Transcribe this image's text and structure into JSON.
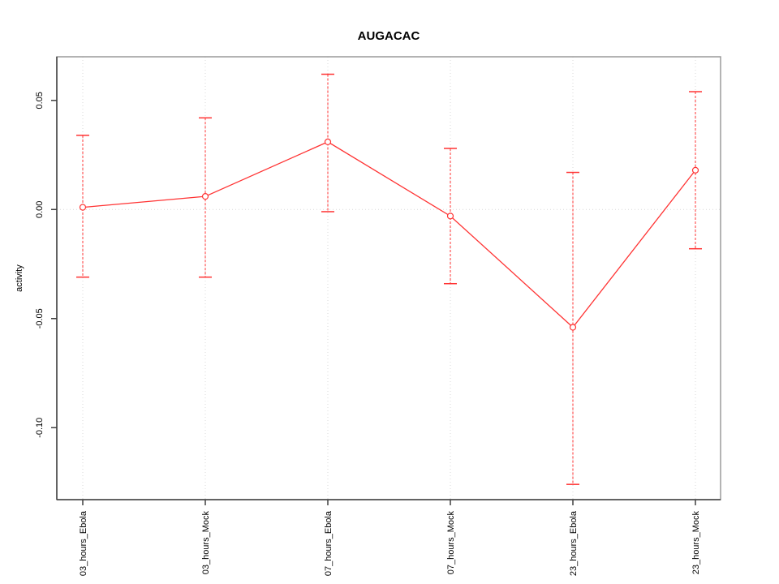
{
  "chart_data": {
    "type": "line",
    "title": "AUGACAC",
    "ylabel": "activity",
    "xlabel": "",
    "legend": "none",
    "grid": "dotted vertical line per category plus dotted horizontal line at zero",
    "categories": [
      "03_hours_Ebola",
      "03_hours_Mock",
      "07_hours_Ebola",
      "07_hours_Mock",
      "23_hours_Ebola",
      "23_hours_Mock"
    ],
    "series": [
      {
        "name": "activity",
        "means": [
          0.001,
          0.006,
          0.031,
          -0.003,
          -0.054,
          0.018
        ],
        "upper": [
          0.034,
          0.042,
          0.062,
          0.028,
          0.017,
          0.054
        ],
        "lower": [
          -0.031,
          -0.031,
          -0.001,
          -0.034,
          -0.126,
          -0.018
        ]
      }
    ],
    "yticks": [
      {
        "value": 0.05,
        "label": "0.05"
      },
      {
        "value": 0.0,
        "label": "0.00"
      },
      {
        "value": -0.05,
        "label": "-0.05"
      },
      {
        "value": -0.1,
        "label": "-0.10"
      }
    ],
    "ylim": [
      -0.133,
      0.07
    ],
    "colors": {
      "series": "#ff3333",
      "grid": "#d9d9d9",
      "box": "#9a9a9a",
      "axis": "#404040",
      "text": "#000000",
      "background": "#ffffff"
    }
  }
}
